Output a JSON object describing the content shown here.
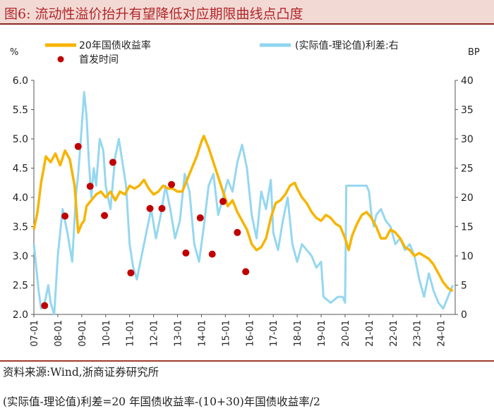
{
  "title": "图6:   流动性溢价抬升有望降低对应期限曲线点凸度",
  "source_note": "资料来源:Wind,浙商证券研究所",
  "formula_note": "(实际值-理论值)利差=20 年国债收益率-(10+30)年国债收益率/2",
  "colors": {
    "yield": "#f7b400",
    "spread": "#8fd5ef",
    "dot": "#c00000",
    "axis": "#555555",
    "title_bg": "#f3d9d4",
    "title_text": "#b0262a"
  },
  "chart_data": {
    "type": "line",
    "title": "",
    "left_axis": {
      "unit": "%",
      "ylim": [
        2.0,
        6.0
      ],
      "ticks": [
        "2.0",
        "2.5",
        "3.0",
        "3.5",
        "4.0",
        "4.5",
        "5.0",
        "5.5",
        "6.0"
      ]
    },
    "right_axis": {
      "unit": "BP",
      "ylim": [
        0,
        40
      ],
      "ticks": [
        "0",
        "5",
        "10",
        "15",
        "20",
        "25",
        "30",
        "35",
        "40"
      ]
    },
    "x_range": [
      2007.0,
      2024.6
    ],
    "x_ticks": [
      "07-01",
      "08-01",
      "09-01",
      "10-01",
      "11-01",
      "12-01",
      "13-01",
      "14-01",
      "15-01",
      "16-01",
      "17-01",
      "18-01",
      "19-01",
      "20-01",
      "21-01",
      "22-01",
      "23-01",
      "24-01"
    ],
    "legend": {
      "yield": "20年国债收益率",
      "spread": "(实际值-理论值)利差:右",
      "dots": "首发时间"
    },
    "series": [
      {
        "name": "20年国债收益率",
        "axis": "left",
        "x": [
          2007.0,
          2007.15,
          2007.3,
          2007.5,
          2007.7,
          2007.9,
          2008.1,
          2008.3,
          2008.5,
          2008.7,
          2008.85,
          2009.0,
          2009.1,
          2009.2,
          2009.4,
          2009.6,
          2009.8,
          2010.0,
          2010.2,
          2010.4,
          2010.6,
          2010.8,
          2011.0,
          2011.2,
          2011.4,
          2011.6,
          2011.8,
          2012.0,
          2012.2,
          2012.4,
          2012.6,
          2012.8,
          2013.0,
          2013.2,
          2013.4,
          2013.6,
          2013.8,
          2014.0,
          2014.1,
          2014.3,
          2014.5,
          2014.7,
          2014.9,
          2015.1,
          2015.3,
          2015.5,
          2015.7,
          2015.9,
          2016.1,
          2016.3,
          2016.5,
          2016.7,
          2016.9,
          2017.1,
          2017.3,
          2017.5,
          2017.7,
          2017.9,
          2018.0,
          2018.2,
          2018.4,
          2018.6,
          2018.8,
          2019.0,
          2019.2,
          2019.4,
          2019.6,
          2019.8,
          2020.0,
          2020.15,
          2020.3,
          2020.5,
          2020.7,
          2020.9,
          2021.1,
          2021.3,
          2021.5,
          2021.7,
          2021.9,
          2022.1,
          2022.3,
          2022.5,
          2022.7,
          2022.9,
          2023.1,
          2023.3,
          2023.5,
          2023.7,
          2023.9,
          2024.1,
          2024.3,
          2024.5
        ],
        "values": [
          3.45,
          3.75,
          4.25,
          4.7,
          4.6,
          4.75,
          4.55,
          4.8,
          4.65,
          4.2,
          3.4,
          3.55,
          3.6,
          3.85,
          3.95,
          4.05,
          4.1,
          4.0,
          4.1,
          3.95,
          4.1,
          4.05,
          4.2,
          4.15,
          4.2,
          4.3,
          4.15,
          4.05,
          4.1,
          4.2,
          4.15,
          4.15,
          4.1,
          4.1,
          4.3,
          4.5,
          4.7,
          4.95,
          5.05,
          4.85,
          4.6,
          4.35,
          4.1,
          3.85,
          3.95,
          3.75,
          3.6,
          3.45,
          3.2,
          3.1,
          3.15,
          3.3,
          3.65,
          3.9,
          3.95,
          4.05,
          4.2,
          4.25,
          4.15,
          4.0,
          3.9,
          3.75,
          3.65,
          3.6,
          3.7,
          3.65,
          3.55,
          3.5,
          3.3,
          3.1,
          3.35,
          3.55,
          3.7,
          3.75,
          3.65,
          3.5,
          3.3,
          3.3,
          3.45,
          3.4,
          3.3,
          3.15,
          3.1,
          3.0,
          3.05,
          3.0,
          2.95,
          2.85,
          2.7,
          2.55,
          2.45,
          2.4
        ]
      },
      {
        "name": "(实际值-理论值)利差",
        "axis": "right",
        "x": [
          2007.0,
          2007.1,
          2007.2,
          2007.3,
          2007.45,
          2007.6,
          2007.7,
          2007.85,
          2008.0,
          2008.2,
          2008.4,
          2008.6,
          2008.75,
          2008.85,
          2009.0,
          2009.1,
          2009.2,
          2009.3,
          2009.4,
          2009.5,
          2009.6,
          2009.75,
          2009.9,
          2010.0,
          2010.2,
          2010.4,
          2010.55,
          2010.7,
          2010.85,
          2011.0,
          2011.15,
          2011.3,
          2011.5,
          2011.7,
          2011.9,
          2012.1,
          2012.3,
          2012.5,
          2012.7,
          2012.9,
          2013.1,
          2013.3,
          2013.5,
          2013.7,
          2013.9,
          2014.1,
          2014.3,
          2014.5,
          2014.7,
          2014.9,
          2015.1,
          2015.3,
          2015.5,
          2015.7,
          2015.9,
          2016.1,
          2016.3,
          2016.5,
          2016.7,
          2016.9,
          2017.0,
          2017.2,
          2017.4,
          2017.6,
          2017.8,
          2018.0,
          2018.2,
          2018.4,
          2018.6,
          2018.8,
          2019.0,
          2019.1,
          2019.4,
          2019.7,
          2019.9,
          2020.0,
          2020.05,
          2020.3,
          2020.6,
          2020.9,
          2021.0,
          2021.1,
          2021.2,
          2021.3,
          2021.5,
          2021.7,
          2021.9,
          2022.1,
          2022.3,
          2022.5,
          2022.7,
          2022.9,
          2023.1,
          2023.3,
          2023.5,
          2023.7,
          2023.9,
          2024.1,
          2024.3,
          2024.5
        ],
        "values": [
          12,
          8,
          4,
          1,
          2,
          5,
          2,
          0,
          10,
          18,
          14,
          9,
          20,
          24,
          32,
          38,
          34,
          26,
          20,
          25,
          22,
          30,
          28,
          22,
          18,
          27,
          30,
          26,
          22,
          12,
          8,
          6,
          10,
          14,
          18,
          13,
          17,
          22,
          18,
          13,
          16,
          24,
          21,
          12,
          9,
          15,
          22,
          24,
          17,
          20,
          23,
          21,
          26,
          29,
          25,
          17,
          13,
          21,
          18,
          23,
          14,
          11,
          16,
          20,
          12,
          9,
          12,
          11,
          10,
          8,
          9,
          3,
          2,
          3,
          3,
          2,
          22,
          22,
          22,
          22,
          21,
          17,
          15,
          17,
          18,
          16,
          15,
          12,
          13,
          11,
          12,
          10,
          6,
          3,
          7,
          4,
          2,
          1,
          3,
          5
        ]
      }
    ],
    "markers": {
      "name": "首发时间",
      "axis": "left",
      "x": [
        2007.45,
        2008.3,
        2008.85,
        2009.35,
        2009.95,
        2010.3,
        2011.05,
        2011.85,
        2012.35,
        2012.75,
        2013.35,
        2013.95,
        2014.45,
        2014.9,
        2015.5,
        2015.85
      ],
      "values": [
        2.15,
        3.68,
        4.87,
        4.19,
        3.69,
        4.6,
        2.71,
        3.81,
        3.81,
        4.22,
        3.05,
        3.65,
        3.03,
        3.93,
        3.4,
        2.73
      ]
    }
  }
}
